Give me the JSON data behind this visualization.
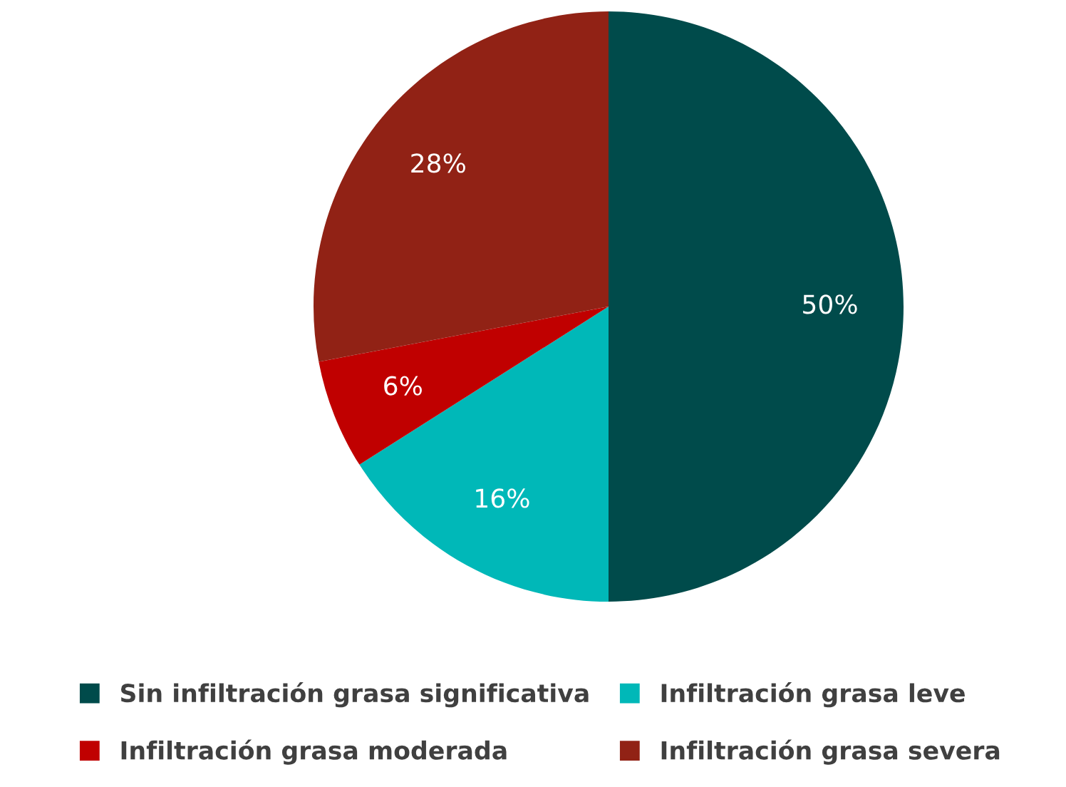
{
  "chart_data": {
    "type": "pie",
    "categories": [
      "Sin infiltración grasa significativa",
      "Infiltración grasa leve",
      "Infiltración grasa moderada",
      "Infiltración grasa severa"
    ],
    "values": [
      50,
      16,
      6,
      28
    ],
    "colors": [
      "#004b4b",
      "#00b8b8",
      "#c00000",
      "#912215"
    ],
    "value_labels": [
      "50%",
      "16%",
      "6%",
      "28%"
    ],
    "legend": "bottom"
  }
}
